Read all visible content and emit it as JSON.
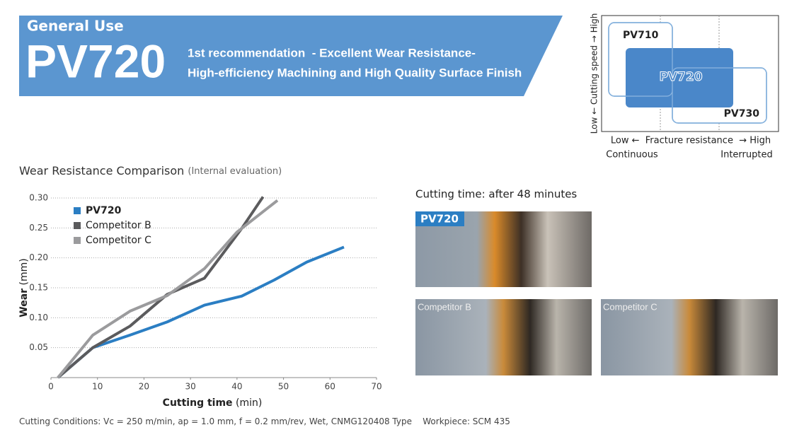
{
  "header": {
    "category": "General Use",
    "product": "PV720",
    "tagline_1": "1st recommendation  - Excellent Wear Resistance-",
    "tagline_2": "High-efficiency Machining and High Quality Surface Finish"
  },
  "positioning": {
    "y_axis": "Low ← Cutting speed → High",
    "x_axis": "Low ←  Fracture resistance  → High",
    "x_left": "Continuous",
    "x_right": "Interrupted",
    "grades": [
      "PV710",
      "PV720",
      "PV730"
    ]
  },
  "chart_data": {
    "type": "line",
    "title": "Wear Resistance Comparison",
    "subtitle": "(Internal evaluation)",
    "x_label": "Cutting time",
    "x_unit": "(min)",
    "y_label": "Wear",
    "y_unit": "(mm)",
    "xlim": [
      0,
      70
    ],
    "ylim": [
      0,
      0.3
    ],
    "xticks": [
      0,
      10,
      20,
      30,
      40,
      50,
      60,
      70
    ],
    "yticks": [
      0.05,
      {
        "value": 0.1,
        "label": "0.10"
      },
      0.15,
      {
        "value": 0.2,
        "label": "0.20"
      },
      0.25,
      {
        "value": 0.3,
        "label": "0.30"
      }
    ],
    "grid": true,
    "legend": "upper left",
    "series": [
      {
        "name": "PV720",
        "color": "#2b7ec3",
        "x": [
          1.5,
          9,
          17,
          25,
          33,
          41,
          48,
          55,
          63
        ],
        "values": [
          0,
          0.05,
          0.071,
          0.093,
          0.121,
          0.136,
          0.163,
          0.193,
          0.218
        ]
      },
      {
        "name": "Competitor B",
        "color": "#5b5b5d",
        "x": [
          1.5,
          9,
          17,
          25,
          33,
          41,
          45.6
        ],
        "values": [
          0,
          0.05,
          0.086,
          0.139,
          0.166,
          0.249,
          0.302
        ]
      },
      {
        "name": "Competitor C",
        "color": "#9b9b9d",
        "x": [
          1.5,
          9,
          17,
          25,
          33,
          40,
          48.7
        ],
        "values": [
          0,
          0.071,
          0.111,
          0.137,
          0.182,
          0.243,
          0.296
        ]
      }
    ]
  },
  "photos": {
    "title": "Cutting time: after 48 minutes",
    "labels": [
      "PV720",
      "Competitor B",
      "Competitor C"
    ]
  },
  "footer": {
    "conditions": "Cutting Conditions: Vc = 250 m/min, ap = 1.0 mm, f = 0.2 mm/rev, Wet, CNMG120408 Type",
    "workpiece": "Workpiece: SCM 435"
  }
}
